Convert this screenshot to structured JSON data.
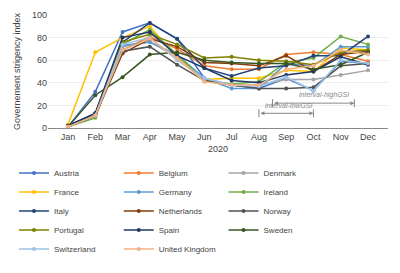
{
  "chart_data": {
    "type": "line",
    "categories": [
      "Jan",
      "Feb",
      "Mar",
      "Apr",
      "May",
      "Jun",
      "Jul",
      "Aug",
      "Sep",
      "Oct",
      "Nov",
      "Dec"
    ],
    "series": [
      {
        "name": "Austria",
        "color": "#4472C4",
        "marker": "circle",
        "values": [
          1,
          32,
          85,
          93,
          79,
          44,
          38,
          35,
          44,
          33,
          59,
          57
        ]
      },
      {
        "name": "Belgium",
        "color": "#ED7D31",
        "marker": "circle",
        "values": [
          1,
          11,
          69,
          81,
          70,
          55,
          52,
          52,
          65,
          67,
          65,
          59
        ]
      },
      {
        "name": "Denmark",
        "color": "#A5A5A5",
        "marker": "circle",
        "values": [
          1,
          11,
          72,
          76,
          63,
          43,
          38,
          38,
          43,
          43,
          47,
          51
        ]
      },
      {
        "name": "France",
        "color": "#FFC000",
        "marker": "circle",
        "values": [
          3,
          67,
          80,
          90,
          62,
          43,
          44,
          44,
          51,
          50,
          71,
          69
        ]
      },
      {
        "name": "Germany",
        "color": "#5B9BD5",
        "marker": "circle",
        "values": [
          1,
          11,
          73,
          76,
          65,
          44,
          35,
          35,
          57,
          55,
          72,
          72
        ]
      },
      {
        "name": "Ireland",
        "color": "#70AD47",
        "marker": "circle",
        "values": [
          1,
          9,
          74,
          87,
          65,
          42,
          39,
          41,
          58,
          62,
          81,
          74
        ]
      },
      {
        "name": "Italy",
        "color": "#264478",
        "marker": "circle",
        "values": [
          2,
          13,
          76,
          93,
          79,
          53,
          46,
          53,
          55,
          64,
          64,
          81
        ]
      },
      {
        "name": "Netherlands",
        "color": "#843C0C",
        "marker": "circle",
        "values": [
          1,
          11,
          66,
          79,
          72,
          58,
          57,
          55,
          64,
          50,
          65,
          68
        ]
      },
      {
        "name": "Norway",
        "color": "#525252",
        "marker": "circle",
        "values": [
          1,
          11,
          68,
          72,
          56,
          42,
          38,
          35,
          35,
          36,
          55,
          57
        ]
      },
      {
        "name": "Portugal",
        "color": "#808000",
        "marker": "circle",
        "values": [
          1,
          11,
          76,
          83,
          74,
          62,
          63,
          60,
          59,
          56,
          67,
          69
        ]
      },
      {
        "name": "Spain",
        "color": "#203864",
        "marker": "circle",
        "values": [
          2,
          13,
          80,
          85,
          64,
          53,
          42,
          40,
          47,
          50,
          63,
          56
        ]
      },
      {
        "name": "Sweden",
        "color": "#375623",
        "marker": "circle",
        "values": [
          1,
          29,
          45,
          65,
          67,
          60,
          58,
          57,
          57,
          52,
          56,
          67
        ]
      },
      {
        "name": "Switzerland",
        "color": "#9DC3E6",
        "marker": "circle",
        "values": [
          1,
          11,
          74,
          80,
          60,
          44,
          38,
          37,
          45,
          33,
          60,
          57
        ]
      },
      {
        "name": "United Kingdom",
        "color": "#F4B183",
        "marker": "circle",
        "values": [
          1,
          11,
          69,
          79,
          62,
          41,
          38,
          38,
          52,
          55,
          69,
          65
        ]
      }
    ],
    "xlabel": "2020",
    "ylabel": "Governement strigency index",
    "ylim": [
      0,
      100
    ],
    "yticks": [
      0,
      20,
      40,
      60,
      80,
      100
    ],
    "grid": "y",
    "legend": "bottom",
    "annotations": [
      {
        "text": "interval-highGSI",
        "x_from": 7.5,
        "x_to": 10.5,
        "y": 22,
        "align": "right"
      },
      {
        "text": "interval-lowGSI",
        "x_from": 7.0,
        "x_to": 9.0,
        "y": 13,
        "align": "left"
      }
    ]
  }
}
